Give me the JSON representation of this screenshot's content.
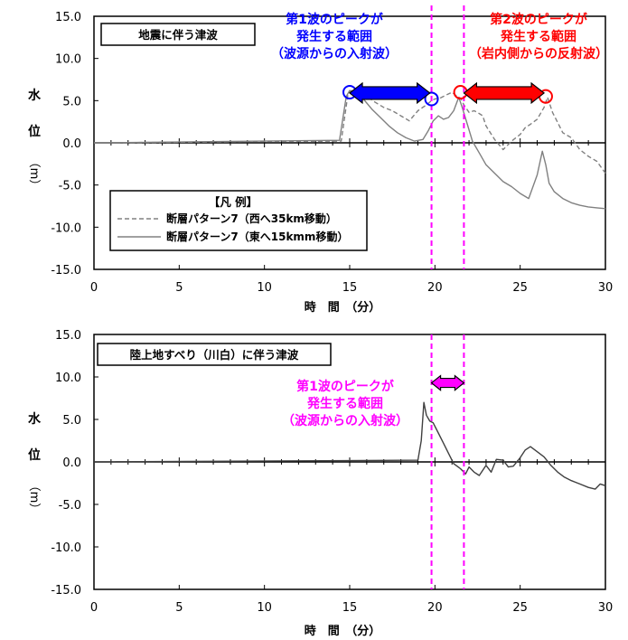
{
  "chart_data": [
    {
      "type": "line",
      "title": "地震に伴う津波",
      "ylabel": "水位（m）",
      "xlabel": "時　間　（分）",
      "xlim": [
        0,
        30
      ],
      "ylim": [
        -15,
        15
      ],
      "xticks": [
        "0",
        "5",
        "10",
        "15",
        "20",
        "25",
        "30"
      ],
      "yticks": [
        "15.0",
        "10.0",
        "5.0",
        "0.0",
        "-5.0",
        "-10.0",
        "-15.0"
      ],
      "legend_title": "【凡 例】",
      "legend_position": "lower-left",
      "series": [
        {
          "name": "断層パターン7（西へ35km移動）",
          "style": "dashed",
          "color": "#808080",
          "x": [
            0,
            14.5,
            14.9,
            15.1,
            15.5,
            16.0,
            16.5,
            17.0,
            17.5,
            18.0,
            18.5,
            19.0,
            19.5,
            19.8,
            20.0,
            20.3,
            20.6,
            21.0,
            21.3,
            21.5,
            21.7,
            22.0,
            22.3,
            22.5,
            22.8,
            23.0,
            23.5,
            24.0,
            24.5,
            25.0,
            25.3,
            25.6,
            26.0,
            26.4,
            26.6,
            26.9,
            27.2,
            27.5,
            28.0,
            28.5,
            29.0,
            29.5,
            30.0
          ],
          "y": [
            0,
            0.2,
            5.8,
            6.2,
            5.8,
            5.5,
            4.8,
            4.2,
            3.8,
            3.2,
            2.6,
            3.8,
            4.5,
            5.0,
            5.2,
            5.3,
            5.6,
            6.0,
            5.5,
            5.3,
            4.5,
            3.6,
            3.8,
            3.6,
            3.2,
            2.0,
            0.4,
            -0.8,
            0.2,
            1.0,
            1.8,
            2.2,
            2.8,
            4.2,
            5.4,
            3.6,
            2.4,
            1.2,
            0.6,
            -0.8,
            -1.6,
            -2.2,
            -3.6
          ]
        },
        {
          "name": "断層パターン7（東へ15kmm移動）",
          "style": "solid",
          "color": "#808080",
          "x": [
            0,
            14.4,
            14.8,
            15.0,
            15.4,
            15.8,
            16.3,
            16.8,
            17.3,
            17.8,
            18.3,
            18.8,
            19.3,
            19.6,
            19.9,
            20.2,
            20.5,
            20.8,
            21.1,
            21.4,
            21.6,
            21.9,
            22.2,
            22.6,
            23.0,
            23.5,
            24.0,
            24.5,
            25.0,
            25.5,
            26.0,
            26.3,
            26.5,
            26.7,
            27.0,
            27.5,
            28.0,
            28.5,
            29.0,
            29.5,
            30.0
          ],
          "y": [
            0,
            0.3,
            5.5,
            6.2,
            5.6,
            5.2,
            4.0,
            3.0,
            2.0,
            1.2,
            0.6,
            0.2,
            0.4,
            1.4,
            2.6,
            3.2,
            2.8,
            3.0,
            3.8,
            5.4,
            4.2,
            2.2,
            0.2,
            -1.2,
            -2.6,
            -3.6,
            -4.6,
            -5.2,
            -6.0,
            -6.6,
            -3.8,
            -1.0,
            -2.6,
            -4.8,
            -5.8,
            -6.6,
            -7.1,
            -7.4,
            -7.6,
            -7.7,
            -7.8
          ]
        }
      ],
      "dashed_lines_x": [
        19.8,
        21.7
      ],
      "annotations": [
        {
          "lines": [
            "第1波のピークが",
            "発生する範囲",
            "（波源からの入射波）"
          ],
          "color": "#0000ff",
          "arrow_from": 15.0,
          "arrow_to": 19.7
        },
        {
          "lines": [
            "第2波のピークが",
            "発生する範囲",
            "（岩内側からの反射波）"
          ],
          "color": "#ff0000",
          "arrow_from": 21.7,
          "arrow_to": 26.4
        }
      ],
      "peak_markers": [
        {
          "x": 15.0,
          "y": 6.0,
          "color": "#0000ff"
        },
        {
          "x": 19.8,
          "y": 5.2,
          "color": "#0000ff"
        },
        {
          "x": 21.5,
          "y": 6.0,
          "color": "#ff0000"
        },
        {
          "x": 26.5,
          "y": 5.5,
          "color": "#ff0000"
        }
      ]
    },
    {
      "type": "line",
      "title": "陸上地すべり（川白）に伴う津波",
      "ylabel": "水位（m）",
      "xlabel": "時　間　（分）",
      "xlim": [
        0,
        30
      ],
      "ylim": [
        -15,
        15
      ],
      "xticks": [
        "0",
        "5",
        "10",
        "15",
        "20",
        "25",
        "30"
      ],
      "yticks": [
        "15.0",
        "10.0",
        "5.0",
        "0.0",
        "-5.0",
        "-10.0",
        "-15.0"
      ],
      "series": [
        {
          "style": "solid",
          "color": "#404040",
          "x": [
            0,
            19.0,
            19.2,
            19.35,
            19.5,
            19.7,
            19.9,
            20.2,
            20.5,
            20.8,
            21.1,
            21.5,
            21.8,
            22.0,
            22.3,
            22.6,
            23.0,
            23.3,
            23.6,
            24.0,
            24.3,
            24.6,
            25.0,
            25.3,
            25.6,
            26.0,
            26.4,
            26.8,
            27.2,
            27.6,
            28.0,
            28.5,
            29.0,
            29.4,
            29.7,
            30.0
          ],
          "y": [
            0,
            0.2,
            2.5,
            7.0,
            5.5,
            4.8,
            4.6,
            3.4,
            2.2,
            1.0,
            -0.2,
            -0.8,
            -1.4,
            -0.6,
            -1.2,
            -1.6,
            -0.4,
            -1.2,
            0.3,
            0.2,
            -0.6,
            -0.5,
            0.5,
            1.4,
            1.8,
            1.2,
            0.6,
            -0.4,
            -1.2,
            -1.8,
            -2.2,
            -2.6,
            -3.0,
            -3.2,
            -2.6,
            -2.8
          ]
        }
      ],
      "dashed_lines_x": [
        19.8,
        21.7
      ],
      "annotations": [
        {
          "lines": [
            "第1波のピークが",
            "発生する範囲",
            "（波源からの入射波）"
          ],
          "color": "#ff00ff",
          "arrow_from": 19.8,
          "arrow_to": 21.7
        }
      ]
    }
  ]
}
